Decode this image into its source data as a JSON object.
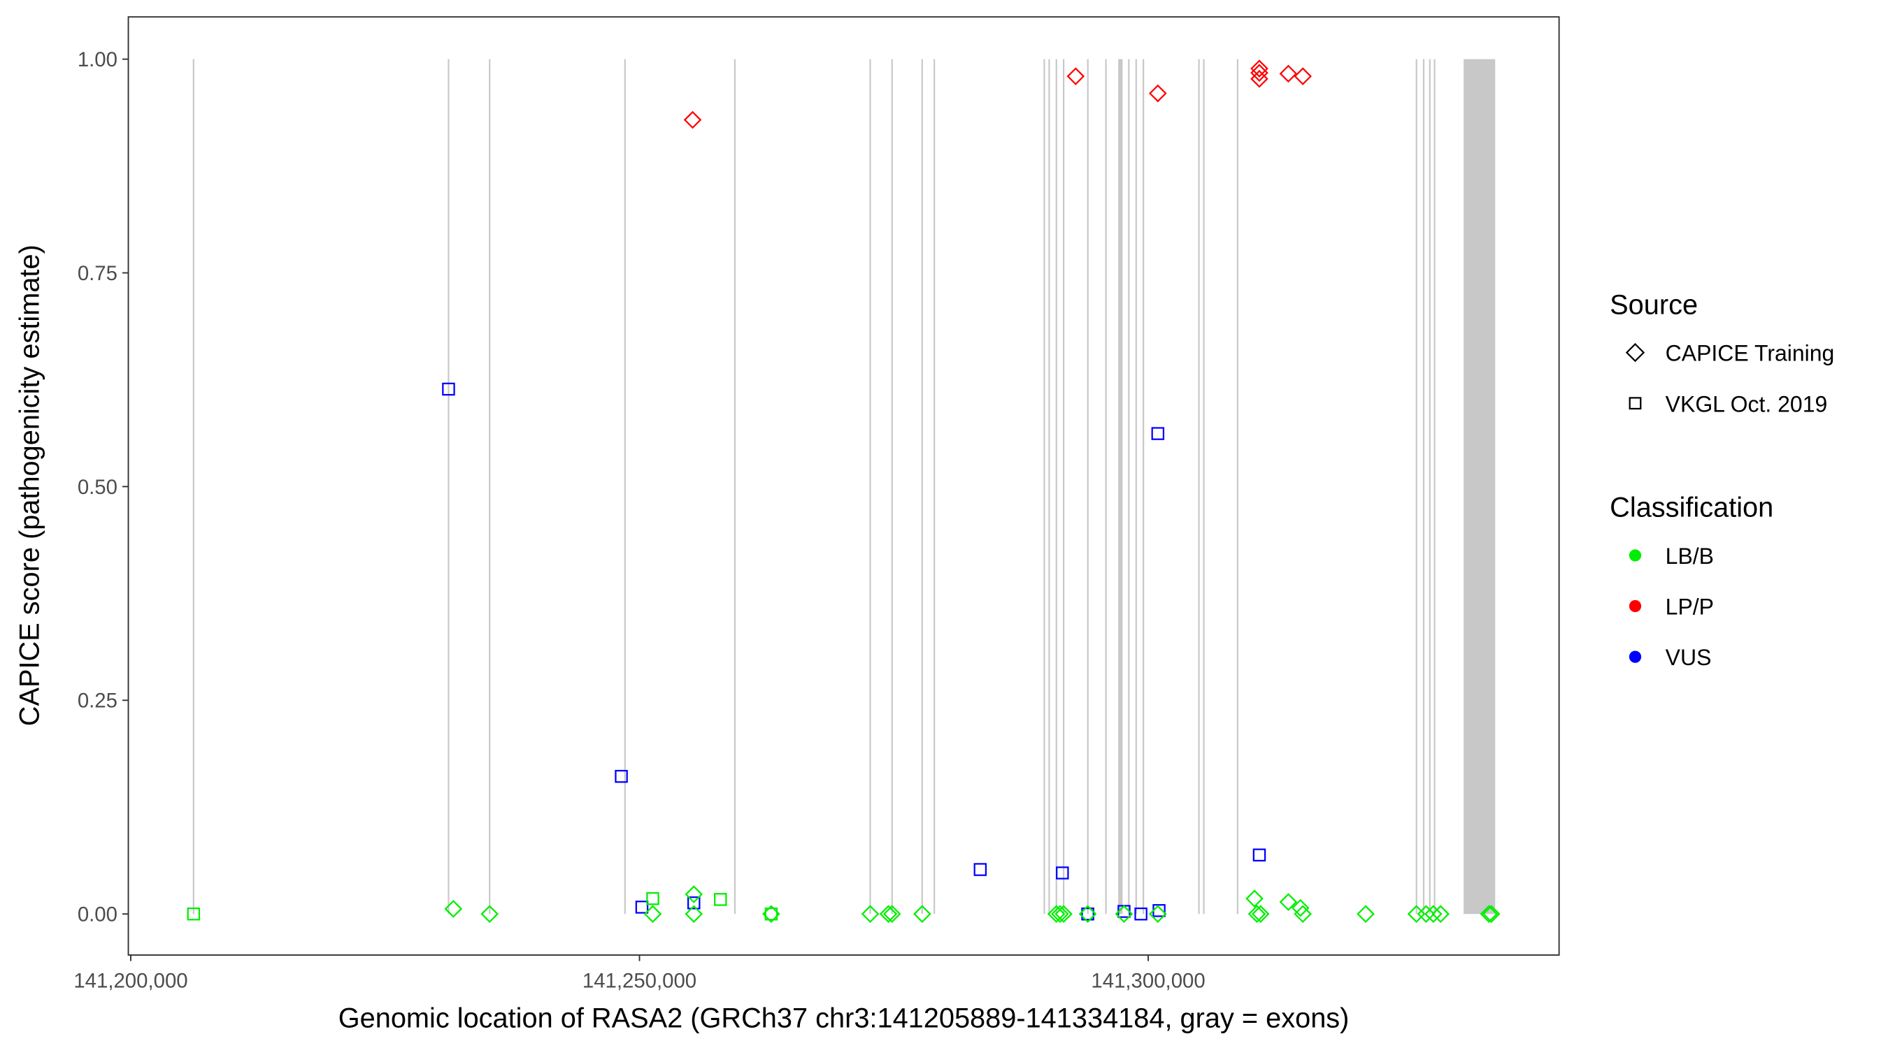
{
  "chart_data": {
    "type": "scatter",
    "xlabel": "Genomic location of RASA2 (GRCh37 chr3:141205889-141334184, gray = exons)",
    "ylabel": "CAPICE score (pathogenicity estimate)",
    "xlim": [
      141199800,
      141339300
    ],
    "ylim": [
      -0.045,
      1.05
    ],
    "x_ticks": [
      {
        "v": 141200000,
        "label": "141,200,000"
      },
      {
        "v": 141250000,
        "label": "141,250,000"
      },
      {
        "v": 141300000,
        "label": "141,300,000"
      }
    ],
    "y_ticks": [
      {
        "v": 0,
        "label": "0.00"
      },
      {
        "v": 0.25,
        "label": "0.25"
      },
      {
        "v": 0.5,
        "label": "0.50"
      },
      {
        "v": 0.75,
        "label": "0.75"
      },
      {
        "v": 1,
        "label": "1.00"
      }
    ],
    "grid": false,
    "exons": [
      [
        141206100,
        141206250
      ],
      [
        141231160,
        141231310
      ],
      [
        141235200,
        141235350
      ],
      [
        141248500,
        141248650
      ],
      [
        141259300,
        141259450
      ],
      [
        141272600,
        141272750
      ],
      [
        141274750,
        141274900
      ],
      [
        141277710,
        141277860
      ],
      [
        141278900,
        141279050
      ],
      [
        141289710,
        141289860
      ],
      [
        141290190,
        141290340
      ],
      [
        141290900,
        141291050
      ],
      [
        141291610,
        141291760
      ],
      [
        141293990,
        141294140
      ],
      [
        141295770,
        141295920
      ],
      [
        141297050,
        141297480
      ],
      [
        141298020,
        141298170
      ],
      [
        141298740,
        141298890
      ],
      [
        141299450,
        141299600
      ],
      [
        141304910,
        141305060
      ],
      [
        141305390,
        141305540
      ],
      [
        141308710,
        141308860
      ],
      [
        141326290,
        141326440
      ],
      [
        141327000,
        141327150
      ],
      [
        141327600,
        141327750
      ],
      [
        141328070,
        141328220
      ],
      [
        141331000,
        141334100
      ]
    ],
    "colors": {
      "LB/B": "#00ee00",
      "LP/P": "#ff0000",
      "VUS": "#0000ff"
    },
    "legend_position": "right",
    "legend": {
      "source_title": "Source",
      "sources": [
        {
          "name": "CAPICE Training",
          "shape": "diamond"
        },
        {
          "name": "VKGL Oct. 2019",
          "shape": "square"
        }
      ],
      "class_title": "Classification",
      "classes": [
        "LB/B",
        "LP/P",
        "VUS"
      ]
    },
    "points": [
      {
        "x": 141255223,
        "y": 0.929,
        "cls": "LP/P",
        "src": "diamond"
      },
      {
        "x": 141292870,
        "y": 0.98,
        "cls": "LP/P",
        "src": "diamond"
      },
      {
        "x": 141300946,
        "y": 0.96,
        "cls": "LP/P",
        "src": "diamond"
      },
      {
        "x": 141310922,
        "y": 0.989,
        "cls": "LP/P",
        "src": "diamond"
      },
      {
        "x": 141310922,
        "y": 0.984,
        "cls": "LP/P",
        "src": "diamond"
      },
      {
        "x": 141310922,
        "y": 0.977,
        "cls": "LP/P",
        "src": "diamond"
      },
      {
        "x": 141313772,
        "y": 0.983,
        "cls": "LP/P",
        "src": "diamond"
      },
      {
        "x": 141315197,
        "y": 0.98,
        "cls": "LP/P",
        "src": "diamond"
      },
      {
        "x": 141231234,
        "y": 0.614,
        "cls": "VUS",
        "src": "square"
      },
      {
        "x": 141248217,
        "y": 0.161,
        "cls": "VUS",
        "src": "square"
      },
      {
        "x": 141250236,
        "y": 0.008,
        "cls": "VUS",
        "src": "square"
      },
      {
        "x": 141255342,
        "y": 0.013,
        "cls": "VUS",
        "src": "square"
      },
      {
        "x": 141283488,
        "y": 0.052,
        "cls": "VUS",
        "src": "square"
      },
      {
        "x": 141291564,
        "y": 0.048,
        "cls": "VUS",
        "src": "square"
      },
      {
        "x": 141294058,
        "y": 0.0,
        "cls": "VUS",
        "src": "square"
      },
      {
        "x": 141297621,
        "y": 0.003,
        "cls": "VUS",
        "src": "square"
      },
      {
        "x": 141299283,
        "y": 0.0,
        "cls": "VUS",
        "src": "square"
      },
      {
        "x": 141300946,
        "y": 0.562,
        "cls": "VUS",
        "src": "square"
      },
      {
        "x": 141301065,
        "y": 0.004,
        "cls": "VUS",
        "src": "square"
      },
      {
        "x": 141310922,
        "y": 0.069,
        "cls": "VUS",
        "src": "square"
      },
      {
        "x": 141206176,
        "y": 0.0,
        "cls": "LB/B",
        "src": "square"
      },
      {
        "x": 141251304,
        "y": 0.018,
        "cls": "LB/B",
        "src": "square"
      },
      {
        "x": 141257955,
        "y": 0.017,
        "cls": "LB/B",
        "src": "square"
      },
      {
        "x": 141262943,
        "y": 0.0,
        "cls": "LB/B",
        "src": "square"
      },
      {
        "x": 141231709,
        "y": 0.006,
        "cls": "LB/B",
        "src": "diamond"
      },
      {
        "x": 141235272,
        "y": 0.0,
        "cls": "LB/B",
        "src": "diamond"
      },
      {
        "x": 141251304,
        "y": 0.0,
        "cls": "LB/B",
        "src": "diamond"
      },
      {
        "x": 141255342,
        "y": 0.023,
        "cls": "LB/B",
        "src": "diamond"
      },
      {
        "x": 141255342,
        "y": 0.0,
        "cls": "LB/B",
        "src": "diamond"
      },
      {
        "x": 141262943,
        "y": 0.0,
        "cls": "LB/B",
        "src": "diamond"
      },
      {
        "x": 141272681,
        "y": 0.0,
        "cls": "LB/B",
        "src": "diamond"
      },
      {
        "x": 141274463,
        "y": 0.0,
        "cls": "LB/B",
        "src": "diamond"
      },
      {
        "x": 141274819,
        "y": 0.0,
        "cls": "LB/B",
        "src": "diamond"
      },
      {
        "x": 141277788,
        "y": 0.0,
        "cls": "LB/B",
        "src": "diamond"
      },
      {
        "x": 141290970,
        "y": 0.0,
        "cls": "LB/B",
        "src": "diamond"
      },
      {
        "x": 141291326,
        "y": 0.0,
        "cls": "LB/B",
        "src": "diamond"
      },
      {
        "x": 141291683,
        "y": 0.0,
        "cls": "LB/B",
        "src": "diamond"
      },
      {
        "x": 141294058,
        "y": 0.0,
        "cls": "LB/B",
        "src": "diamond"
      },
      {
        "x": 141297621,
        "y": 0.0,
        "cls": "LB/B",
        "src": "diamond"
      },
      {
        "x": 141300946,
        "y": 0.0,
        "cls": "LB/B",
        "src": "diamond"
      },
      {
        "x": 141310447,
        "y": 0.018,
        "cls": "LB/B",
        "src": "diamond"
      },
      {
        "x": 141310685,
        "y": 0.0,
        "cls": "LB/B",
        "src": "diamond"
      },
      {
        "x": 141311041,
        "y": 0.0,
        "cls": "LB/B",
        "src": "diamond"
      },
      {
        "x": 141313772,
        "y": 0.014,
        "cls": "LB/B",
        "src": "diamond"
      },
      {
        "x": 141314960,
        "y": 0.007,
        "cls": "LB/B",
        "src": "diamond"
      },
      {
        "x": 141315197,
        "y": 0.0,
        "cls": "LB/B",
        "src": "diamond"
      },
      {
        "x": 141321373,
        "y": 0.0,
        "cls": "LB/B",
        "src": "diamond"
      },
      {
        "x": 141326361,
        "y": 0.0,
        "cls": "LB/B",
        "src": "diamond"
      },
      {
        "x": 141327311,
        "y": 0.0,
        "cls": "LB/B",
        "src": "diamond"
      },
      {
        "x": 141328024,
        "y": 0.0,
        "cls": "LB/B",
        "src": "diamond"
      },
      {
        "x": 141328736,
        "y": 0.0,
        "cls": "LB/B",
        "src": "diamond"
      },
      {
        "x": 141333486,
        "y": 0.0,
        "cls": "LB/B",
        "src": "diamond"
      },
      {
        "x": 141333724,
        "y": 0.0,
        "cls": "LB/B",
        "src": "diamond"
      }
    ]
  }
}
